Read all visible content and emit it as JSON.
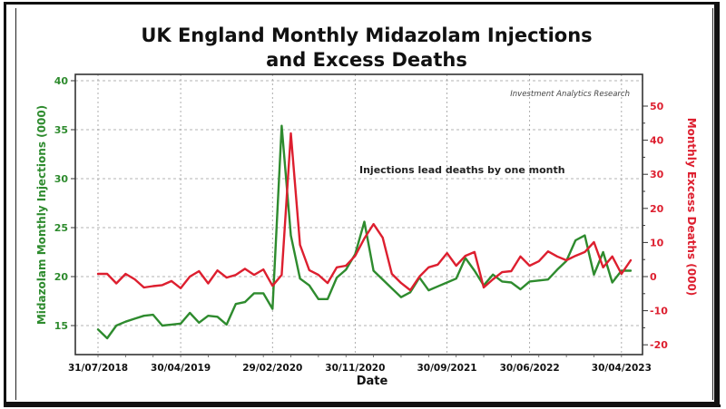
{
  "chart_data": {
    "type": "line",
    "title": "UK England Monthly Midazolam Injections",
    "subtitle": "and Excess Deaths",
    "xlabel": "Date",
    "ylabel_left": "Midazolam Monthly Injections (000)",
    "ylabel_right": "Monthly Excess Deaths (000)",
    "source_note": "Investment Analytics Research",
    "annotation": "Injections lead deaths by one month",
    "x_start": "2018-07",
    "x_tick_labels": [
      "31/07/2018",
      "30/04/2019",
      "29/02/2020",
      "30/11/2020",
      "30/09/2021",
      "30/06/2022",
      "30/04/2023"
    ],
    "x_tick_month_index": [
      0,
      9,
      19,
      28,
      38,
      47,
      57
    ],
    "ylim_left": [
      13.2,
      41
    ],
    "yticks_left": [
      15,
      20,
      25,
      30,
      35,
      40
    ],
    "ylim_right": [
      -22,
      55
    ],
    "yticks_right": [
      -20,
      -10,
      0,
      10,
      20,
      30,
      40,
      50
    ],
    "grid": true,
    "series": [
      {
        "name": "Midazolam Monthly Injections (000)",
        "axis": "left",
        "color": "#2e8b2e",
        "values": [
          14.6,
          13.7,
          15.0,
          15.4,
          15.7,
          16.0,
          16.1,
          15.0,
          15.1,
          15.2,
          16.3,
          15.3,
          16.0,
          15.9,
          15.1,
          17.2,
          17.4,
          18.3,
          18.3,
          16.7,
          35.4,
          24.2,
          19.8,
          19.1,
          17.7,
          17.7,
          19.9,
          20.7,
          22.3,
          25.6,
          20.6,
          19.7,
          18.8,
          17.9,
          18.4,
          19.9,
          18.6,
          19.0,
          19.4,
          19.8,
          21.9,
          20.6,
          19.1,
          20.2,
          19.5,
          19.4,
          18.7,
          19.5,
          19.6,
          19.7,
          20.7,
          21.6,
          23.7,
          24.2,
          20.2,
          22.5,
          19.4,
          20.6,
          20.6
        ]
      },
      {
        "name": "Monthly Excess Deaths (000)",
        "axis": "right",
        "color": "#dd1f2f",
        "values": [
          0.8,
          0.8,
          -2.0,
          0.8,
          -0.8,
          -3.2,
          -2.8,
          -2.5,
          -1.3,
          -3.4,
          0.0,
          1.6,
          -2.0,
          1.8,
          -0.3,
          0.5,
          2.3,
          0.5,
          2.1,
          -2.7,
          0.5,
          42.0,
          9.3,
          1.9,
          0.5,
          -1.9,
          2.7,
          3.2,
          6.1,
          11.2,
          15.4,
          11.4,
          0.8,
          -1.9,
          -4.0,
          0.0,
          2.7,
          3.5,
          6.9,
          3.2,
          6.1,
          7.2,
          -3.2,
          -0.8,
          1.3,
          1.6,
          5.9,
          3.2,
          4.5,
          7.4,
          5.9,
          4.8,
          6.1,
          7.2,
          10.1,
          2.7,
          5.9,
          0.8,
          4.8
        ]
      }
    ],
    "colors": {
      "left_axis": "#2e8b2e",
      "right_axis": "#dd1f2f",
      "grid": "#9a9a9a"
    }
  }
}
